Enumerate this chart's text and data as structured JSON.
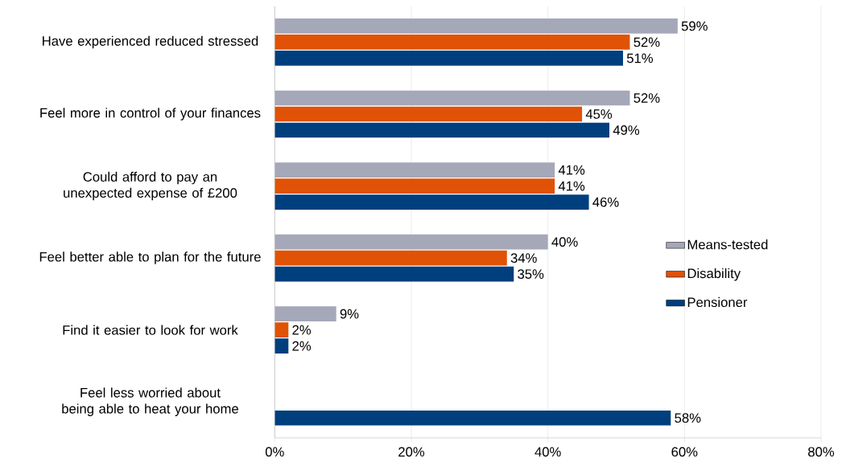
{
  "chart_data": {
    "type": "bar",
    "orientation": "horizontal",
    "categories": [
      "Have experienced reduced stressed",
      "Feel more in control of your finances",
      "Could afford to pay an unexpected expense of £200",
      "Feel better able to plan for the future",
      "Find it easier to look for work",
      "Feel less worried about being able to heat your home"
    ],
    "series": [
      {
        "name": "Means-tested",
        "color": "#a5a8b8",
        "values": [
          59,
          52,
          41,
          40,
          9,
          null
        ],
        "value_labels": [
          "59%",
          "52%",
          "41%",
          "40%",
          "9%",
          null
        ]
      },
      {
        "name": "Disability",
        "color": "#e05206",
        "values": [
          52,
          45,
          41,
          34,
          2,
          null
        ],
        "value_labels": [
          "52%",
          "45%",
          "41%",
          "34%",
          "2%",
          null
        ]
      },
      {
        "name": "Pensioner",
        "color": "#003f7d",
        "values": [
          51,
          49,
          46,
          35,
          2,
          58
        ],
        "value_labels": [
          "51%",
          "49%",
          "46%",
          "35%",
          "2%",
          "58%"
        ]
      }
    ],
    "xlim": [
      0,
      80
    ],
    "xticks": [
      {
        "value": 0,
        "label": "0%"
      },
      {
        "value": 20,
        "label": "20%"
      },
      {
        "value": 40,
        "label": "40%"
      },
      {
        "value": 60,
        "label": "60%"
      },
      {
        "value": 80,
        "label": "80%"
      }
    ],
    "grid": "x",
    "legend": "right"
  }
}
